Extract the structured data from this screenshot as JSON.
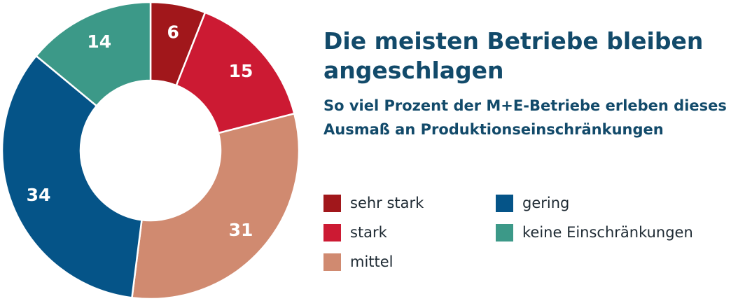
{
  "title": "Die meisten Betriebe bleiben angeschlagen",
  "subtitle": "So viel Prozent der M+E-Betriebe erleben dieses Ausmaß an Produktionseinschränkungen",
  "chart_data": {
    "type": "pie",
    "donut": true,
    "unit": "%",
    "categories": [
      "sehr stark",
      "stark",
      "mittel",
      "gering",
      "keine Einschränkungen"
    ],
    "values": [
      6,
      15,
      31,
      34,
      14
    ],
    "colors": [
      "#a1171b",
      "#cc1a33",
      "#d08a70",
      "#055488",
      "#3c9988"
    ],
    "legend_position": "right"
  }
}
